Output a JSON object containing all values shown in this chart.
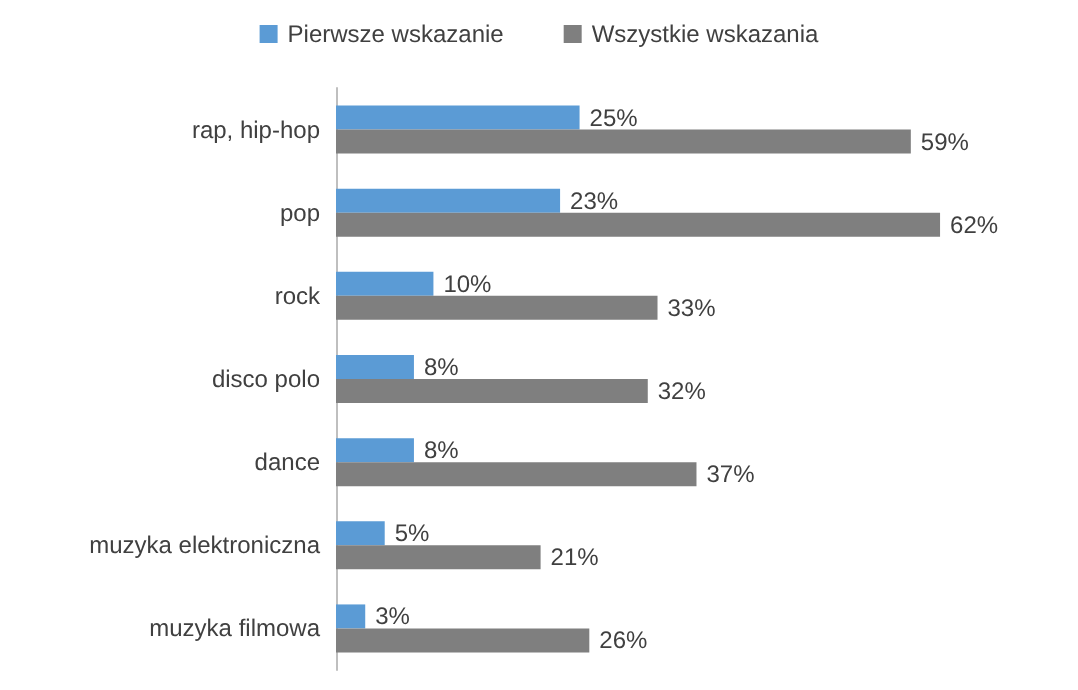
{
  "chart_data": {
    "type": "bar",
    "orientation": "horizontal",
    "legend": "top",
    "categories": [
      "rap, hip-hop",
      "pop",
      "rock",
      "disco polo",
      "dance",
      "muzyka elektroniczna",
      "muzyka filmowa"
    ],
    "series": [
      {
        "name": "Pierwsze wskazanie",
        "color": "#5b9bd5",
        "values": [
          25,
          23,
          10,
          8,
          8,
          5,
          3
        ],
        "value_labels": [
          "25%",
          "23%",
          "10%",
          "8%",
          "8%",
          "5%",
          "3%"
        ]
      },
      {
        "name": "Wszystkie wskazania",
        "color": "#7f7f7f",
        "values": [
          59,
          62,
          33,
          32,
          37,
          21,
          26
        ],
        "value_labels": [
          "59%",
          "62%",
          "33%",
          "32%",
          "37%",
          "21%",
          "26%"
        ]
      }
    ]
  }
}
